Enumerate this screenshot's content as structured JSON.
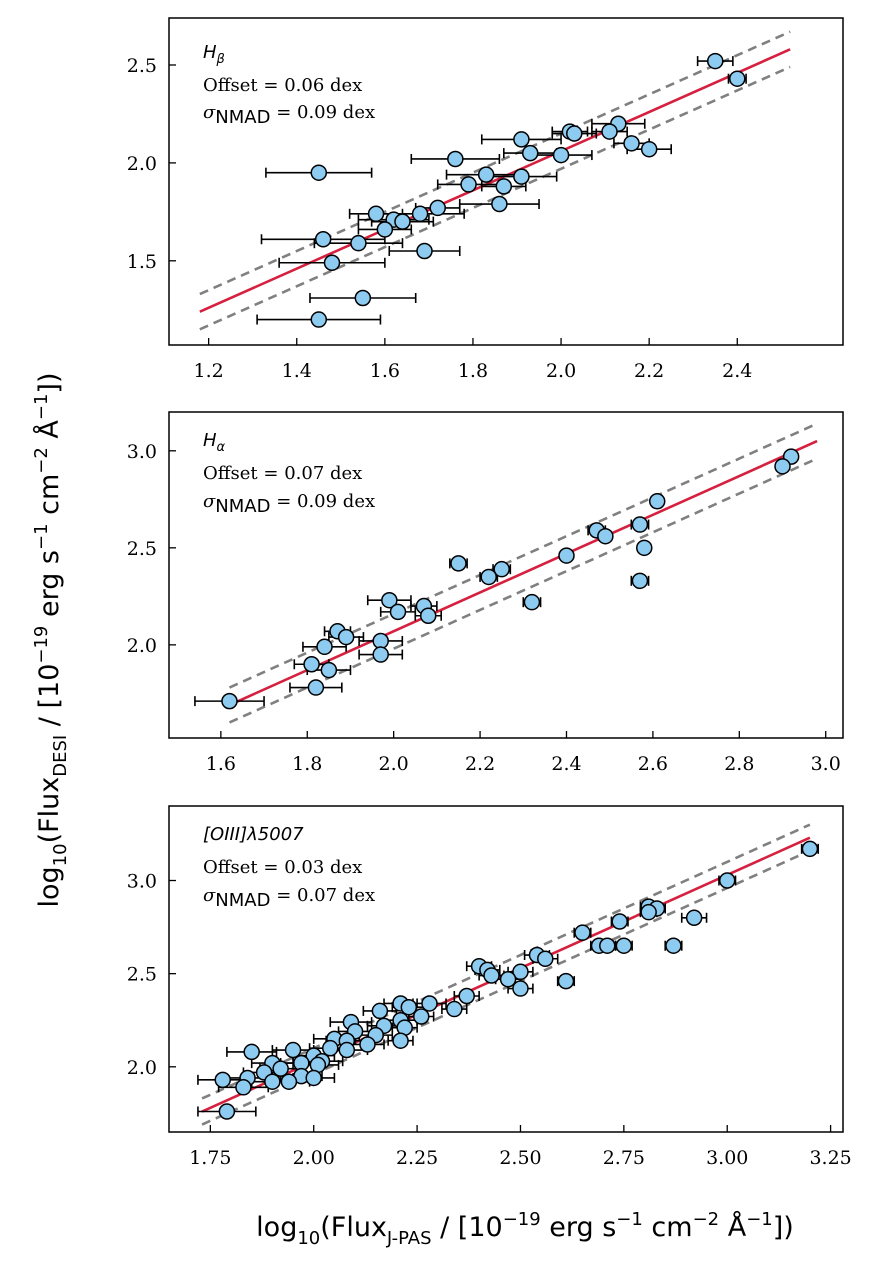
{
  "figure": {
    "ylabel": {
      "prefix": "log",
      "prefix_sub": "10",
      "flux": "Flux",
      "flux_sub": "DESI",
      "units_a": " / [10",
      "units_exp": "−19",
      "units_b": " erg s",
      "units_exp2": "−1",
      "units_c": " cm",
      "units_exp3": "−2",
      "units_d": " Å",
      "units_exp4": "−1",
      "units_e": "])"
    },
    "xlabel": {
      "prefix": "log",
      "prefix_sub": "10",
      "flux": "Flux",
      "flux_sub": "J-PAS",
      "units_a": " / [10",
      "units_exp": "−19",
      "units_b": " erg s",
      "units_exp2": "−1",
      "units_c": " cm",
      "units_exp3": "−2",
      "units_d": " Å",
      "units_exp4": "−1",
      "units_e": "])"
    },
    "colors": {
      "marker": "#8ecbf0",
      "fit": "#d6203f",
      "band": "#808080",
      "axis": "#000000"
    }
  },
  "chart_data": [
    {
      "type": "scatter",
      "line_name": "H",
      "line_sub": "β",
      "offset_text": "Offset = 0.06 dex",
      "sigma_symbol": "σ",
      "sigma_sub": "NMAD",
      "sigma_text": " = 0.09 dex",
      "xlim": [
        1.11,
        2.64
      ],
      "ylim": [
        1.07,
        2.74
      ],
      "xticks": [
        1.2,
        1.4,
        1.6,
        1.8,
        2.0,
        2.2,
        2.4
      ],
      "xtick_labels": [
        "1.2",
        "1.4",
        "1.6",
        "1.8",
        "2.0",
        "2.2",
        "2.4"
      ],
      "yticks": [
        1.5,
        2.0,
        2.5
      ],
      "ytick_labels": [
        "1.5",
        "2.0",
        "2.5"
      ],
      "fit": {
        "x": [
          1.18,
          2.52
        ],
        "offset": 0.06,
        "scatter": 0.09
      },
      "points": [
        {
          "x": 2.35,
          "y": 2.52,
          "xerr": 0.04
        },
        {
          "x": 2.4,
          "y": 2.43,
          "xerr": 0.02
        },
        {
          "x": 2.13,
          "y": 2.2,
          "xerr": 0.06
        },
        {
          "x": 2.11,
          "y": 2.16,
          "xerr": 0.04
        },
        {
          "x": 2.02,
          "y": 2.16,
          "xerr": 0.04
        },
        {
          "x": 2.03,
          "y": 2.15,
          "xerr": 0.05
        },
        {
          "x": 1.91,
          "y": 2.12,
          "xerr": 0.09
        },
        {
          "x": 2.16,
          "y": 2.1,
          "xerr": 0.04
        },
        {
          "x": 2.2,
          "y": 2.07,
          "xerr": 0.05
        },
        {
          "x": 1.93,
          "y": 2.05,
          "xerr": 0.06
        },
        {
          "x": 2.0,
          "y": 2.04,
          "xerr": 0.07
        },
        {
          "x": 1.76,
          "y": 2.02,
          "xerr": 0.1
        },
        {
          "x": 1.45,
          "y": 1.95,
          "xerr": 0.12
        },
        {
          "x": 1.83,
          "y": 1.94,
          "xerr": 0.09
        },
        {
          "x": 1.91,
          "y": 1.93,
          "xerr": 0.08
        },
        {
          "x": 1.79,
          "y": 1.89,
          "xerr": 0.07
        },
        {
          "x": 1.87,
          "y": 1.88,
          "xerr": 0.05
        },
        {
          "x": 1.86,
          "y": 1.79,
          "xerr": 0.09
        },
        {
          "x": 1.72,
          "y": 1.77,
          "xerr": 0.05
        },
        {
          "x": 1.58,
          "y": 1.74,
          "xerr": 0.06
        },
        {
          "x": 1.68,
          "y": 1.74,
          "xerr": 0.1
        },
        {
          "x": 1.62,
          "y": 1.71,
          "xerr": 0.08
        },
        {
          "x": 1.64,
          "y": 1.7,
          "xerr": 0.07
        },
        {
          "x": 1.6,
          "y": 1.66,
          "xerr": 0.06
        },
        {
          "x": 1.46,
          "y": 1.61,
          "xerr": 0.14
        },
        {
          "x": 1.54,
          "y": 1.59,
          "xerr": 0.1
        },
        {
          "x": 1.69,
          "y": 1.55,
          "xerr": 0.08
        },
        {
          "x": 1.48,
          "y": 1.49,
          "xerr": 0.12
        },
        {
          "x": 1.55,
          "y": 1.31,
          "xerr": 0.12
        },
        {
          "x": 1.45,
          "y": 1.2,
          "xerr": 0.14
        }
      ]
    },
    {
      "type": "scatter",
      "line_name": "H",
      "line_sub": "α",
      "offset_text": "Offset = 0.07 dex",
      "sigma_symbol": "σ",
      "sigma_sub": "NMAD",
      "sigma_text": " = 0.09 dex",
      "xlim": [
        1.48,
        3.04
      ],
      "ylim": [
        1.52,
        3.2
      ],
      "xticks": [
        1.6,
        1.8,
        2.0,
        2.2,
        2.4,
        2.6,
        2.8,
        3.0
      ],
      "xtick_labels": [
        "1.6",
        "1.8",
        "2.0",
        "2.2",
        "2.4",
        "2.6",
        "2.8",
        "3.0"
      ],
      "yticks": [
        2.0,
        2.5,
        3.0
      ],
      "ytick_labels": [
        "2.0",
        "2.5",
        "3.0"
      ],
      "fit": {
        "x": [
          1.62,
          2.98
        ],
        "offset": 0.07,
        "scatter": 0.09
      },
      "points": [
        {
          "x": 2.92,
          "y": 2.97,
          "xerr": 0.01
        },
        {
          "x": 2.9,
          "y": 2.92,
          "xerr": 0.01
        },
        {
          "x": 2.61,
          "y": 2.74,
          "xerr": 0.01
        },
        {
          "x": 2.57,
          "y": 2.62,
          "xerr": 0.02
        },
        {
          "x": 2.47,
          "y": 2.59,
          "xerr": 0.02
        },
        {
          "x": 2.49,
          "y": 2.56,
          "xerr": 0.01
        },
        {
          "x": 2.58,
          "y": 2.5,
          "xerr": 0.01
        },
        {
          "x": 2.4,
          "y": 2.46,
          "xerr": 0.01
        },
        {
          "x": 2.15,
          "y": 2.42,
          "xerr": 0.02
        },
        {
          "x": 2.25,
          "y": 2.39,
          "xerr": 0.02
        },
        {
          "x": 2.22,
          "y": 2.35,
          "xerr": 0.02
        },
        {
          "x": 2.57,
          "y": 2.33,
          "xerr": 0.02
        },
        {
          "x": 1.99,
          "y": 2.23,
          "xerr": 0.05
        },
        {
          "x": 2.32,
          "y": 2.22,
          "xerr": 0.02
        },
        {
          "x": 2.07,
          "y": 2.2,
          "xerr": 0.03
        },
        {
          "x": 2.01,
          "y": 2.17,
          "xerr": 0.04
        },
        {
          "x": 2.08,
          "y": 2.15,
          "xerr": 0.03
        },
        {
          "x": 1.87,
          "y": 2.07,
          "xerr": 0.03
        },
        {
          "x": 1.89,
          "y": 2.04,
          "xerr": 0.04
        },
        {
          "x": 1.97,
          "y": 2.02,
          "xerr": 0.05
        },
        {
          "x": 1.84,
          "y": 1.99,
          "xerr": 0.05
        },
        {
          "x": 1.97,
          "y": 1.95,
          "xerr": 0.05
        },
        {
          "x": 1.81,
          "y": 1.9,
          "xerr": 0.04
        },
        {
          "x": 1.85,
          "y": 1.87,
          "xerr": 0.05
        },
        {
          "x": 1.82,
          "y": 1.78,
          "xerr": 0.06
        },
        {
          "x": 1.62,
          "y": 1.71,
          "xerr": 0.08
        }
      ]
    },
    {
      "type": "scatter",
      "line_name": "[OIII]λ5007",
      "line_sub": "",
      "offset_text": "Offset = 0.03 dex",
      "sigma_symbol": "σ",
      "sigma_sub": "NMAD",
      "sigma_text": " = 0.07 dex",
      "xlim": [
        1.65,
        3.28
      ],
      "ylim": [
        1.65,
        3.4
      ],
      "xticks": [
        1.75,
        2.0,
        2.25,
        2.5,
        2.75,
        3.0,
        3.25
      ],
      "xtick_labels": [
        "1.75",
        "2.00",
        "2.25",
        "2.50",
        "2.75",
        "3.00",
        "3.25"
      ],
      "yticks": [
        2.0,
        2.5,
        3.0
      ],
      "ytick_labels": [
        "2.0",
        "2.5",
        "3.0"
      ],
      "fit": {
        "x": [
          1.73,
          3.2
        ],
        "offset": 0.03,
        "scatter": 0.07
      },
      "points": [
        {
          "x": 3.2,
          "y": 3.17,
          "xerr": 0.02
        },
        {
          "x": 3.0,
          "y": 3.0,
          "xerr": 0.02
        },
        {
          "x": 2.81,
          "y": 2.86,
          "xerr": 0.02
        },
        {
          "x": 2.83,
          "y": 2.85,
          "xerr": 0.02
        },
        {
          "x": 2.81,
          "y": 2.83,
          "xerr": 0.02
        },
        {
          "x": 2.92,
          "y": 2.8,
          "xerr": 0.03
        },
        {
          "x": 2.74,
          "y": 2.78,
          "xerr": 0.02
        },
        {
          "x": 2.65,
          "y": 2.72,
          "xerr": 0.02
        },
        {
          "x": 2.69,
          "y": 2.65,
          "xerr": 0.02
        },
        {
          "x": 2.71,
          "y": 2.65,
          "xerr": 0.02
        },
        {
          "x": 2.75,
          "y": 2.65,
          "xerr": 0.02
        },
        {
          "x": 2.87,
          "y": 2.65,
          "xerr": 0.02
        },
        {
          "x": 2.54,
          "y": 2.6,
          "xerr": 0.03
        },
        {
          "x": 2.56,
          "y": 2.58,
          "xerr": 0.03
        },
        {
          "x": 2.4,
          "y": 2.54,
          "xerr": 0.03
        },
        {
          "x": 2.42,
          "y": 2.52,
          "xerr": 0.03
        },
        {
          "x": 2.5,
          "y": 2.51,
          "xerr": 0.03
        },
        {
          "x": 2.43,
          "y": 2.49,
          "xerr": 0.03
        },
        {
          "x": 2.47,
          "y": 2.47,
          "xerr": 0.03
        },
        {
          "x": 2.61,
          "y": 2.46,
          "xerr": 0.02
        },
        {
          "x": 2.5,
          "y": 2.42,
          "xerr": 0.03
        },
        {
          "x": 2.37,
          "y": 2.38,
          "xerr": 0.03
        },
        {
          "x": 2.28,
          "y": 2.34,
          "xerr": 0.04
        },
        {
          "x": 2.21,
          "y": 2.34,
          "xerr": 0.04
        },
        {
          "x": 2.23,
          "y": 2.32,
          "xerr": 0.04
        },
        {
          "x": 2.34,
          "y": 2.31,
          "xerr": 0.03
        },
        {
          "x": 2.16,
          "y": 2.3,
          "xerr": 0.04
        },
        {
          "x": 2.26,
          "y": 2.27,
          "xerr": 0.03
        },
        {
          "x": 2.21,
          "y": 2.25,
          "xerr": 0.04
        },
        {
          "x": 2.09,
          "y": 2.24,
          "xerr": 0.05
        },
        {
          "x": 2.17,
          "y": 2.22,
          "xerr": 0.04
        },
        {
          "x": 2.22,
          "y": 2.21,
          "xerr": 0.03
        },
        {
          "x": 2.1,
          "y": 2.19,
          "xerr": 0.04
        },
        {
          "x": 2.15,
          "y": 2.17,
          "xerr": 0.04
        },
        {
          "x": 2.05,
          "y": 2.15,
          "xerr": 0.05
        },
        {
          "x": 2.08,
          "y": 2.14,
          "xerr": 0.05
        },
        {
          "x": 2.21,
          "y": 2.14,
          "xerr": 0.03
        },
        {
          "x": 2.13,
          "y": 2.12,
          "xerr": 0.04
        },
        {
          "x": 2.04,
          "y": 2.1,
          "xerr": 0.05
        },
        {
          "x": 2.08,
          "y": 2.09,
          "xerr": 0.05
        },
        {
          "x": 1.95,
          "y": 2.09,
          "xerr": 0.05
        },
        {
          "x": 1.85,
          "y": 2.08,
          "xerr": 0.06
        },
        {
          "x": 2.0,
          "y": 2.06,
          "xerr": 0.05
        },
        {
          "x": 2.02,
          "y": 2.03,
          "xerr": 0.05
        },
        {
          "x": 1.9,
          "y": 2.02,
          "xerr": 0.05
        },
        {
          "x": 1.97,
          "y": 2.02,
          "xerr": 0.05
        },
        {
          "x": 2.01,
          "y": 2.01,
          "xerr": 0.05
        },
        {
          "x": 1.92,
          "y": 1.99,
          "xerr": 0.05
        },
        {
          "x": 1.88,
          "y": 1.97,
          "xerr": 0.05
        },
        {
          "x": 1.97,
          "y": 1.95,
          "xerr": 0.05
        },
        {
          "x": 1.84,
          "y": 1.94,
          "xerr": 0.06
        },
        {
          "x": 2.0,
          "y": 1.94,
          "xerr": 0.05
        },
        {
          "x": 1.78,
          "y": 1.93,
          "xerr": 0.06
        },
        {
          "x": 1.94,
          "y": 1.92,
          "xerr": 0.05
        },
        {
          "x": 1.9,
          "y": 1.92,
          "xerr": 0.05
        },
        {
          "x": 1.83,
          "y": 1.89,
          "xerr": 0.06
        },
        {
          "x": 1.79,
          "y": 1.76,
          "xerr": 0.07
        }
      ]
    }
  ]
}
